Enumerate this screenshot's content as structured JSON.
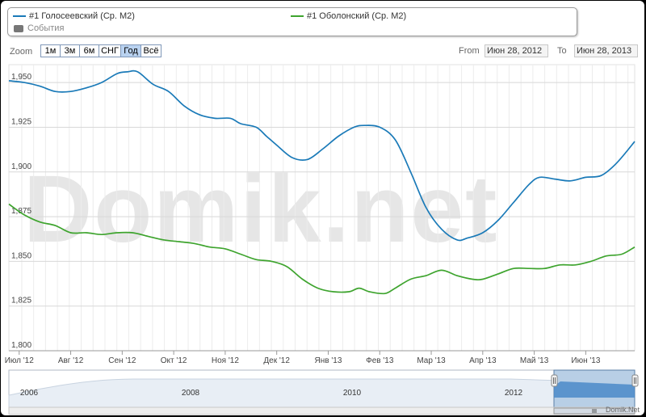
{
  "legend": {
    "series1": "#1 Голосеевский (Ср. М2)",
    "series2": "#1 Оболонский (Ср. М2)",
    "events": "События"
  },
  "zoom": {
    "label": "Zoom",
    "buttons": [
      "1м",
      "3м",
      "6м",
      "СНГ",
      "Год",
      "Всё"
    ],
    "active": "Год"
  },
  "range": {
    "from_label": "From",
    "from_value": "Июн 28, 2012",
    "to_label": "To",
    "to_value": "Июн 28, 2013"
  },
  "watermark": "Domik.net",
  "credit": "Domik.Net",
  "colors": {
    "series1": "#1a7ab8",
    "series2": "#3ea42e",
    "navigator": "#4a8ac8"
  },
  "chart_data": {
    "type": "line",
    "yticks": [
      "1,950",
      "1,925",
      "1,900",
      "1,875",
      "1,850",
      "1,825",
      "1,800"
    ],
    "ylim": [
      1800,
      1960
    ],
    "xticks": [
      "Июл '12",
      "Авг '12",
      "Сен '12",
      "Окт '12",
      "Ноя '12",
      "Дек '12",
      "Янв '13",
      "Фев '13",
      "Мар '13",
      "Апр '13",
      "Май '13",
      "Июн '13"
    ],
    "xlim": [
      -0.2,
      11.95
    ],
    "series": [
      {
        "name": "#1 Голосеевский (Ср. М2)",
        "color": "#1a7ab8",
        "x": [
          -0.2,
          0.1,
          0.4,
          0.7,
          1.0,
          1.3,
          1.6,
          1.9,
          2.1,
          2.3,
          2.6,
          2.9,
          3.2,
          3.5,
          3.8,
          4.1,
          4.3,
          4.6,
          4.8,
          5.0,
          5.3,
          5.6,
          5.9,
          6.2,
          6.5,
          6.7,
          7.0,
          7.3,
          7.6,
          7.9,
          8.2,
          8.5,
          8.7,
          9.0,
          9.3,
          9.6,
          9.9,
          10.1,
          10.4,
          10.7,
          11.0,
          11.3,
          11.6,
          11.95
        ],
        "y": [
          1951,
          1950,
          1948,
          1945,
          1945,
          1947,
          1950,
          1955,
          1956,
          1956,
          1949,
          1945,
          1937,
          1932,
          1930,
          1930,
          1927,
          1925,
          1920,
          1915,
          1908,
          1907,
          1913,
          1920,
          1925,
          1926,
          1925,
          1918,
          1900,
          1880,
          1868,
          1862,
          1863,
          1866,
          1873,
          1883,
          1893,
          1897,
          1896,
          1895,
          1897,
          1898,
          1905,
          1917
        ]
      },
      {
        "name": "#1 Оболонский (Ср. М2)",
        "color": "#3ea42e",
        "x": [
          -0.2,
          0.1,
          0.4,
          0.7,
          1.0,
          1.3,
          1.6,
          1.9,
          2.2,
          2.5,
          2.8,
          3.1,
          3.4,
          3.7,
          4.0,
          4.3,
          4.6,
          4.9,
          5.2,
          5.5,
          5.8,
          6.1,
          6.4,
          6.6,
          6.8,
          7.1,
          7.3,
          7.6,
          7.9,
          8.2,
          8.5,
          8.8,
          9.0,
          9.3,
          9.6,
          9.9,
          10.2,
          10.5,
          10.8,
          11.1,
          11.4,
          11.7,
          11.95
        ],
        "y": [
          1882,
          1876,
          1872,
          1870,
          1866,
          1866,
          1865,
          1866,
          1866,
          1864,
          1862,
          1861,
          1860,
          1858,
          1857,
          1854,
          1851,
          1850,
          1847,
          1840,
          1835,
          1833,
          1833,
          1835,
          1833,
          1832,
          1835,
          1840,
          1842,
          1845,
          1842,
          1840,
          1840,
          1843,
          1846,
          1846,
          1846,
          1848,
          1848,
          1850,
          1853,
          1854,
          1858
        ]
      }
    ],
    "navigator": {
      "labels": [
        "2006",
        "2008",
        "2010",
        "2012"
      ],
      "xlim": [
        2005.75,
        2013.5
      ],
      "label_x": [
        2006,
        2008,
        2010,
        2012
      ],
      "selection": [
        2012.5,
        2013.5
      ]
    }
  }
}
